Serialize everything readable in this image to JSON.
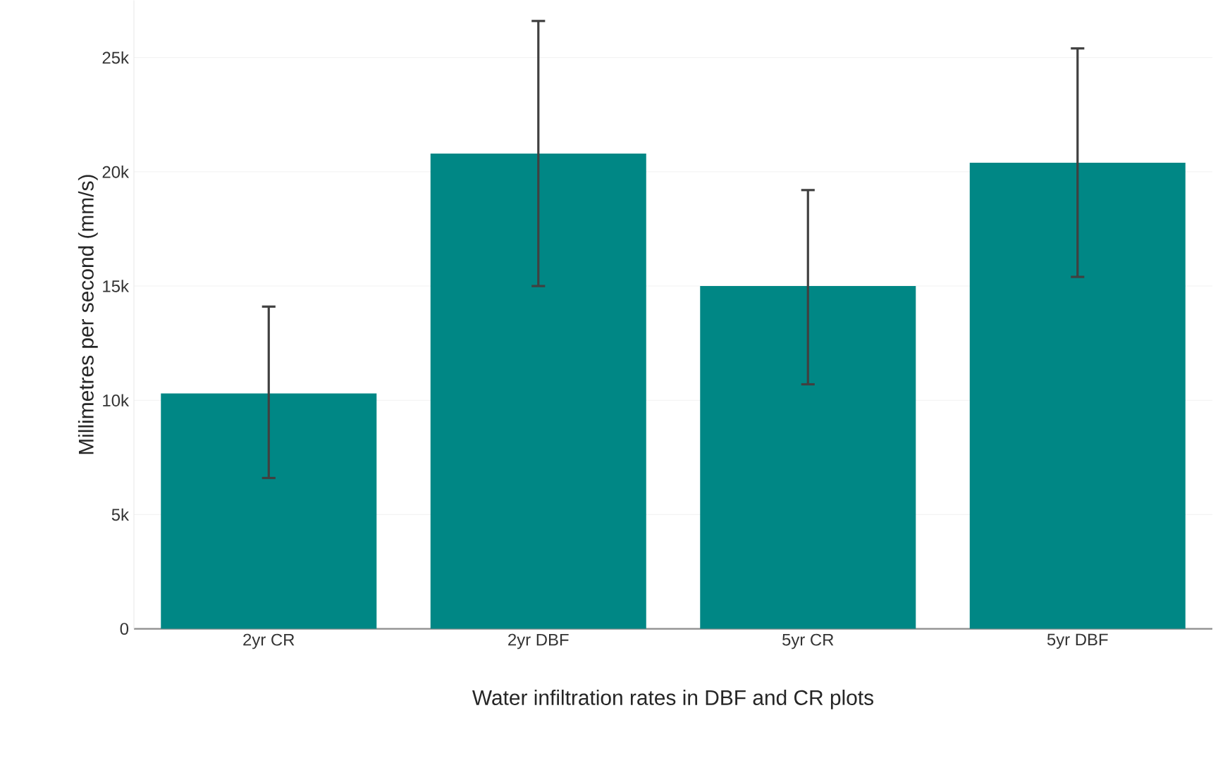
{
  "chart_data": {
    "type": "bar",
    "xlabel": "Water infiltration rates in DBF and CR plots",
    "ylabel": "Millimetres per second (mm/s)",
    "categories": [
      "2yr CR",
      "2yr DBF",
      "5yr CR",
      "5yr DBF"
    ],
    "values": [
      10300,
      20800,
      15000,
      20400
    ],
    "errors": [
      [
        6600,
        14100
      ],
      [
        15000,
        26600
      ],
      [
        10700,
        19200
      ],
      [
        15400,
        25400
      ]
    ],
    "color": "#008785",
    "ylim": [
      0,
      27500
    ],
    "yticks": [
      0,
      {
        "value": 5000,
        "label": "5k"
      },
      {
        "value": 10000,
        "label": "10k"
      },
      {
        "value": 15000,
        "label": "15k"
      },
      {
        "value": 20000,
        "label": "20k"
      },
      {
        "value": 25000,
        "label": "25k"
      }
    ],
    "grid": "y"
  }
}
